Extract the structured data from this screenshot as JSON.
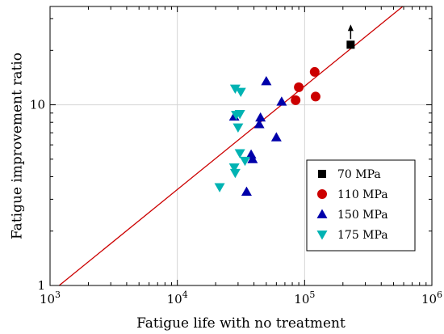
{
  "chart_data": {
    "type": "scatter",
    "title": "",
    "xlabel": "Fatigue life with no treatment",
    "ylabel": "Fatigue improvement ratio",
    "xscale": "log",
    "yscale": "log",
    "xlim": [
      1000,
      1000000
    ],
    "ylim": [
      1,
      35
    ],
    "grid": true,
    "legend_position": "bottom-right",
    "x_ticks": [
      {
        "value": 1000,
        "base": "10",
        "exp": "3"
      },
      {
        "value": 10000,
        "base": "10",
        "exp": "4"
      },
      {
        "value": 100000,
        "base": "10",
        "exp": "5"
      },
      {
        "value": 1000000,
        "base": "10",
        "exp": "6"
      }
    ],
    "y_ticks": [
      {
        "value": 1,
        "label": "1"
      },
      {
        "value": 10,
        "label": "10"
      }
    ],
    "series": [
      {
        "name": "70 MPa",
        "marker": "square",
        "color": "#000000",
        "points": [
          [
            230000,
            21.5
          ]
        ],
        "runout_arrow": true
      },
      {
        "name": "110 MPa",
        "marker": "circle",
        "color": "#cc0000",
        "points": [
          [
            90000,
            12.5
          ],
          [
            120000,
            15.2
          ],
          [
            85000,
            10.6
          ],
          [
            122000,
            11.1
          ]
        ]
      },
      {
        "name": "150 MPa",
        "marker": "triangle-up",
        "color": "#0000aa",
        "points": [
          [
            50000,
            13.5
          ],
          [
            66000,
            10.4
          ],
          [
            28000,
            8.6
          ],
          [
            45000,
            8.5
          ],
          [
            44000,
            7.8
          ],
          [
            60000,
            6.6
          ],
          [
            38000,
            5.3
          ],
          [
            39000,
            5.0
          ],
          [
            35000,
            3.3
          ]
        ]
      },
      {
        "name": "175 MPa",
        "marker": "triangle-down",
        "color": "#00b3b3",
        "points": [
          [
            28500,
            12.3
          ],
          [
            31500,
            11.8
          ],
          [
            29000,
            8.8
          ],
          [
            31000,
            8.9
          ],
          [
            30000,
            7.5
          ],
          [
            31000,
            5.4
          ],
          [
            34000,
            4.9
          ],
          [
            28000,
            4.5
          ],
          [
            28500,
            4.2
          ],
          [
            21500,
            3.5
          ]
        ]
      }
    ],
    "trend_line": {
      "color": "#cc0000",
      "points": [
        [
          1180,
          1
        ],
        [
          590000,
          35
        ]
      ]
    }
  }
}
